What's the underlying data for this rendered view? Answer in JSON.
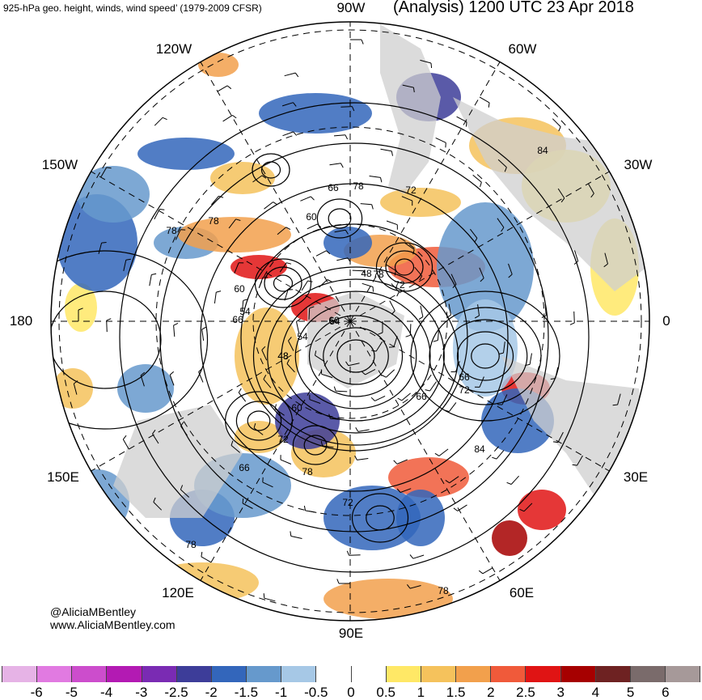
{
  "header": {
    "title_left": "925-hPa geo. height, winds, wind speed’ (1979-2009 CFSR)",
    "title_right": "(Analysis) 1200 UTC 23 Apr 2018"
  },
  "map": {
    "projection": "north-polar-stereographic",
    "center": "north-pole",
    "longitude_labels": {
      "90W": "90W",
      "60W": "60W",
      "30W": "30W",
      "0": "0",
      "30E": "30E",
      "60E": "60E",
      "90E": "90E",
      "120E": "120E",
      "150E": "150E",
      "180": "180",
      "150W": "150W",
      "120W": "120W"
    },
    "contour_labels": [
      "84",
      "78",
      "72",
      "66",
      "60",
      "78",
      "78",
      "60",
      "54",
      "48",
      "72",
      "66",
      "54",
      "48",
      "60",
      "66",
      "72",
      "66",
      "60",
      "72",
      "78",
      "66",
      "72",
      "84",
      "78",
      "78",
      "78",
      "54",
      "48"
    ],
    "colors": {
      "land": "#cfcfcf",
      "ocean": "#ffffff",
      "contour": "#000000",
      "graticule": "#000000"
    }
  },
  "credit": {
    "line1": "@AliciaMBentley",
    "line2": "www.AliciaMBentley.com"
  },
  "colorbar": {
    "colors": [
      "#e6b3e6",
      "#e17ae1",
      "#cc4dcc",
      "#b31ab3",
      "#7a2bb3",
      "#3d3d99",
      "#3366bb",
      "#6699cc",
      "#a6c8e6",
      "#ffffff",
      "#ffffff",
      "#ffe866",
      "#f5c25c",
      "#f2a04c",
      "#f05a3a",
      "#e01414",
      "#a60000",
      "#6e2222",
      "#7a6b6b",
      "#a69999"
    ],
    "labels": [
      "-6",
      "-5",
      "-4",
      "-3",
      "-2.5",
      "-2",
      "-1.5",
      "-1",
      "-0.5",
      "0",
      "0.5",
      "1",
      "1.5",
      "2",
      "2.5",
      "3",
      "4",
      "5",
      "6"
    ]
  }
}
